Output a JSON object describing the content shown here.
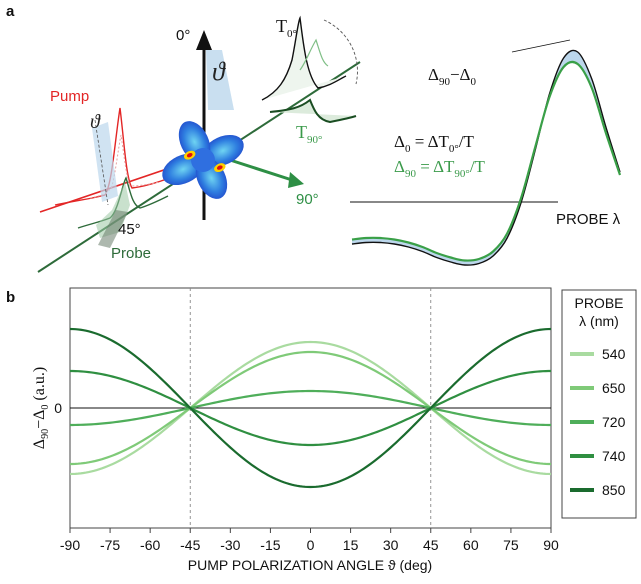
{
  "colors": {
    "pump": "#e32626",
    "probe": "#2e6b3a",
    "green_text": "#3a9a4a",
    "axis": "#111111",
    "shade": "#bcd7ec",
    "series": [
      "#a9dba0",
      "#7fca78",
      "#4fae5a",
      "#2f8f41",
      "#1a6b2e"
    ]
  },
  "panel_a": {
    "label": "a",
    "pump_label": "Pump",
    "probe_label": "Probe",
    "angle_0": "0°",
    "angle_90": "90°",
    "angle_45": "45°",
    "theta": "ϑ",
    "t0_label": "T0°",
    "t90_label": "T90°",
    "diff_label": "Δ90−Δ0",
    "eq1": "Δ0 = ΔT0°/T",
    "eq2": "Δ90 = ΔT90°/T",
    "probe_axis": "PROBE λ",
    "sketch": {
      "delta0": [
        -0.28,
        -0.27,
        -0.27,
        -0.28,
        -0.3,
        -0.33,
        -0.37,
        -0.4,
        -0.42,
        -0.41,
        -0.36,
        -0.24,
        0.0,
        0.35,
        0.72,
        0.96,
        1.0,
        0.82,
        0.5,
        0.2
      ],
      "delta90": [
        -0.25,
        -0.24,
        -0.24,
        -0.25,
        -0.27,
        -0.3,
        -0.34,
        -0.37,
        -0.39,
        -0.38,
        -0.33,
        -0.21,
        0.03,
        0.37,
        0.7,
        0.9,
        0.92,
        0.76,
        0.46,
        0.18
      ]
    }
  },
  "chart_data": {
    "type": "line",
    "panel_label": "b",
    "xlabel": "PUMP POLARIZATION ANGLE ϑ (deg)",
    "ylabel": "Δ90−Δ0 (a.u.)",
    "x_ticks": [
      -90,
      -75,
      -60,
      -45,
      -30,
      -15,
      0,
      15,
      30,
      45,
      60,
      75,
      90
    ],
    "y_ticks": [
      0
    ],
    "xlim": [
      -90,
      90
    ],
    "ylim": [
      -1.2,
      1.2
    ],
    "grid": false,
    "vlines": [
      -45,
      45
    ],
    "legend": {
      "title_line1": "PROBE",
      "title_line2": "λ (nm)",
      "placement": "right"
    },
    "series": [
      {
        "name": "540",
        "amplitude": 0.66,
        "offset": 0.0
      },
      {
        "name": "650",
        "amplitude": 0.56,
        "offset": 0.0
      },
      {
        "name": "720",
        "amplitude": 0.17,
        "offset": 0.0
      },
      {
        "name": "740",
        "amplitude": -0.37,
        "offset": 0.0
      },
      {
        "name": "850",
        "amplitude": -0.79,
        "offset": 0.0
      }
    ],
    "model": "y = amplitude · cos(2ϑ)"
  }
}
